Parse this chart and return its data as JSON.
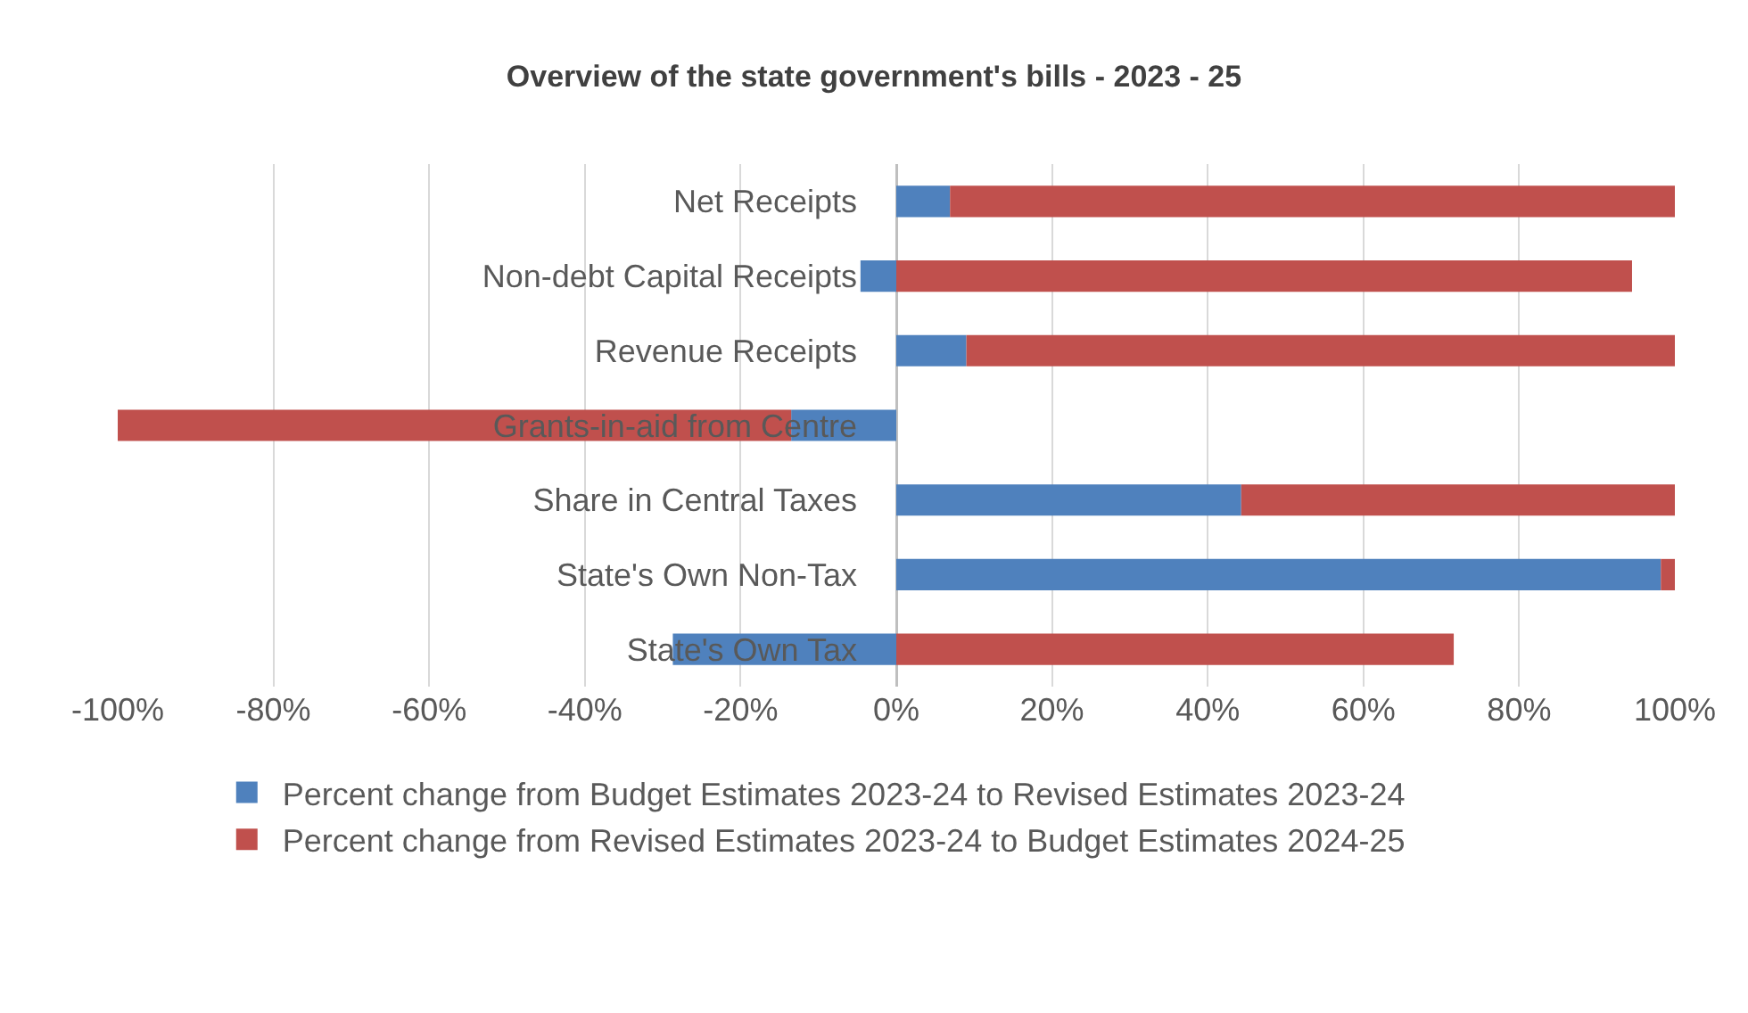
{
  "chart_data": {
    "type": "bar",
    "orientation": "horizontal",
    "stacked": true,
    "title": "Overview of the state government's bills - 2023 - 25",
    "categories": [
      "Net Receipts",
      "Non-debt Capital Receipts",
      "Revenue Receipts",
      "Grants-in-aid from Centre",
      "Share in Central Taxes",
      "State's Own Non-Tax",
      "State's Own Tax"
    ],
    "series": [
      {
        "name": "Percent change from Budget Estimates 2023-24 to Revised Estimates 2023-24",
        "color": "#4f81bd",
        "values": [
          6.9,
          -4.6,
          9,
          -13.5,
          44.3,
          98.2,
          -28.7
        ]
      },
      {
        "name": "Percent change from Revised Estimates 2023-24 to Budget Estimates 2024-25",
        "color": "#c0504d",
        "values": [
          93.1,
          94.5,
          91,
          -86.5,
          55.7,
          1.8,
          71.6
        ]
      }
    ],
    "xlim": [
      -100,
      100
    ],
    "xticks": [
      {
        "value": -100,
        "label": "-100%"
      },
      {
        "value": -80,
        "label": "-80%"
      },
      {
        "value": -60,
        "label": "-60%"
      },
      {
        "value": -40,
        "label": "-40%"
      },
      {
        "value": -20,
        "label": "-20%"
      },
      {
        "value": 0,
        "label": "0%"
      },
      {
        "value": 20,
        "label": "20%"
      },
      {
        "value": 40,
        "label": "40%"
      },
      {
        "value": 60,
        "label": "60%"
      },
      {
        "value": 80,
        "label": "80%"
      },
      {
        "value": 100,
        "label": "100%"
      }
    ],
    "grid": "x",
    "legend": "bottom"
  }
}
